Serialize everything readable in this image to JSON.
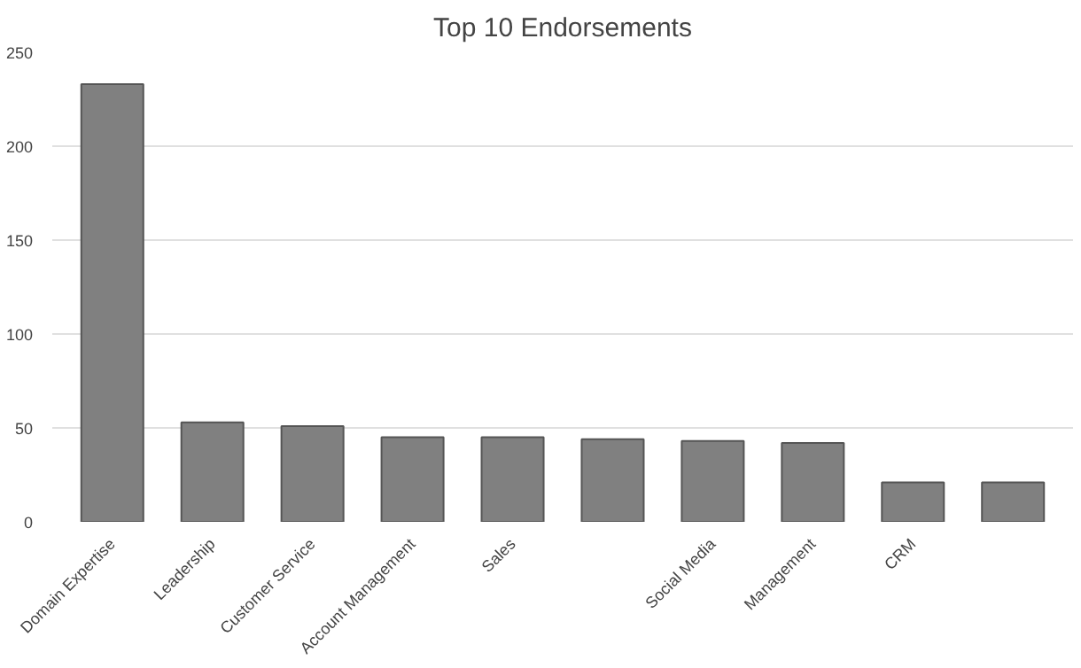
{
  "chart_data": {
    "type": "bar",
    "title": "Top 10 Endorsements",
    "categories": [
      "Domain Expertise",
      "Leadership",
      "Customer Service",
      "Account Management",
      "Sales",
      null,
      "Social Media",
      "Management",
      "CRM",
      null
    ],
    "values": [
      233,
      53,
      51,
      45,
      45,
      44,
      43,
      42,
      21,
      21
    ],
    "color": "#808080",
    "ylim": [
      0,
      250
    ],
    "yticks": [
      0,
      50,
      100,
      150,
      200,
      250
    ],
    "grid": "y"
  }
}
